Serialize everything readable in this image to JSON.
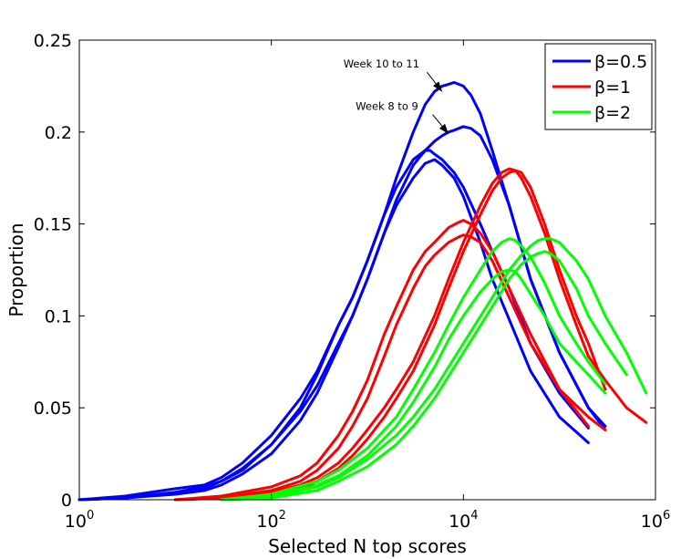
{
  "chart_data": {
    "type": "line",
    "title": "",
    "xlabel": "Selected N top scores",
    "ylabel": "Proportion",
    "xscale": "log10",
    "xlim": [
      1,
      1000000
    ],
    "ylim": [
      0,
      0.25
    ],
    "x_ticks": [
      {
        "base": "10",
        "exp": "0"
      },
      {
        "base": "10",
        "exp": "2"
      },
      {
        "base": "10",
        "exp": "4"
      },
      {
        "base": "10",
        "exp": "6"
      }
    ],
    "x_tick_values": [
      1,
      100,
      10000,
      1000000
    ],
    "y_ticks": [
      "0",
      "0.05",
      "0.1",
      "0.15",
      "0.2",
      "0.25"
    ],
    "y_tick_values": [
      0,
      0.05,
      0.1,
      0.15,
      0.2,
      0.25
    ],
    "legend": {
      "position": "top-right",
      "entries": [
        {
          "label": "β=0.5",
          "color": "#0000ff"
        },
        {
          "label": "β=1",
          "color": "#ff0000"
        },
        {
          "label": "β=2",
          "color": "#00ff00"
        }
      ]
    },
    "annotations": [
      {
        "text": "Week 10 to 11",
        "target_x": 6000,
        "target_y": 0.222,
        "text_x": 1400,
        "text_y": 0.235
      },
      {
        "text": "Week 8 to 9",
        "target_x": 7000,
        "target_y": 0.199,
        "text_x": 1600,
        "text_y": 0.212
      }
    ],
    "series": [
      {
        "name": "β=0.5 a",
        "group": "β=0.5",
        "color": "#0000ff",
        "x": [
          1,
          3,
          10,
          20,
          30,
          50,
          100,
          200,
          300,
          500,
          700,
          1000,
          1500,
          2000,
          3000,
          4000,
          5000,
          6000,
          7000,
          8000,
          10000,
          12000,
          15000,
          20000,
          30000,
          50000,
          100000,
          200000,
          300000
        ],
        "y": [
          0,
          0.002,
          0.006,
          0.008,
          0.012,
          0.02,
          0.035,
          0.055,
          0.07,
          0.095,
          0.11,
          0.13,
          0.155,
          0.175,
          0.2,
          0.215,
          0.222,
          0.225,
          0.226,
          0.227,
          0.225,
          0.22,
          0.21,
          0.19,
          0.16,
          0.12,
          0.08,
          0.05,
          0.038
        ]
      },
      {
        "name": "β=0.5 b",
        "group": "β=0.5",
        "color": "#0000ff",
        "x": [
          1,
          3,
          10,
          20,
          30,
          50,
          100,
          200,
          300,
          500,
          700,
          1000,
          1500,
          2000,
          3000,
          4000,
          5000,
          6000,
          7000,
          8000,
          10000,
          12000,
          15000,
          20000,
          30000,
          50000,
          100000,
          200000,
          300000
        ],
        "y": [
          0,
          0.001,
          0.004,
          0.006,
          0.01,
          0.017,
          0.03,
          0.048,
          0.062,
          0.085,
          0.1,
          0.12,
          0.145,
          0.163,
          0.182,
          0.19,
          0.195,
          0.198,
          0.2,
          0.201,
          0.203,
          0.202,
          0.198,
          0.185,
          0.16,
          0.12,
          0.08,
          0.05,
          0.04
        ]
      },
      {
        "name": "β=0.5 c",
        "group": "β=0.5",
        "color": "#0000ff",
        "x": [
          1,
          3,
          10,
          20,
          30,
          50,
          100,
          200,
          300,
          500,
          700,
          1000,
          1500,
          2000,
          3000,
          4000,
          4500,
          5000,
          6000,
          8000,
          10000,
          15000,
          20000,
          30000,
          50000,
          100000,
          200000
        ],
        "y": [
          0,
          0.001,
          0.004,
          0.007,
          0.01,
          0.016,
          0.03,
          0.05,
          0.068,
          0.095,
          0.11,
          0.13,
          0.155,
          0.17,
          0.185,
          0.19,
          0.19,
          0.188,
          0.185,
          0.178,
          0.17,
          0.15,
          0.135,
          0.115,
          0.085,
          0.058,
          0.039
        ]
      },
      {
        "name": "β=0.5 d",
        "group": "β=0.5",
        "color": "#0000ff",
        "x": [
          1,
          3,
          10,
          20,
          30,
          50,
          100,
          200,
          300,
          500,
          700,
          1000,
          1500,
          2000,
          3000,
          4000,
          5000,
          6000,
          8000,
          10000,
          15000,
          20000,
          30000,
          50000,
          100000,
          200000
        ],
        "y": [
          0,
          0.001,
          0.003,
          0.005,
          0.008,
          0.014,
          0.025,
          0.043,
          0.058,
          0.083,
          0.1,
          0.12,
          0.145,
          0.16,
          0.175,
          0.183,
          0.185,
          0.182,
          0.175,
          0.165,
          0.14,
          0.12,
          0.098,
          0.07,
          0.045,
          0.031
        ]
      },
      {
        "name": "β=1 a",
        "group": "β=1",
        "color": "#ff0000",
        "x": [
          10,
          30,
          100,
          200,
          300,
          500,
          700,
          1000,
          1500,
          2000,
          3000,
          5000,
          7000,
          10000,
          15000,
          20000,
          25000,
          30000,
          35000,
          40000,
          50000,
          70000,
          100000,
          150000,
          200000,
          300000,
          500000,
          800000
        ],
        "y": [
          0,
          0.001,
          0.004,
          0.008,
          0.012,
          0.02,
          0.028,
          0.038,
          0.05,
          0.06,
          0.075,
          0.1,
          0.12,
          0.14,
          0.16,
          0.172,
          0.178,
          0.18,
          0.179,
          0.175,
          0.165,
          0.145,
          0.12,
          0.095,
          0.078,
          0.065,
          0.05,
          0.042
        ]
      },
      {
        "name": "β=1 b",
        "group": "β=1",
        "color": "#ff0000",
        "x": [
          10,
          30,
          100,
          200,
          300,
          500,
          700,
          1000,
          1500,
          2000,
          3000,
          5000,
          7000,
          10000,
          15000,
          20000,
          25000,
          30000,
          35000,
          40000,
          50000,
          70000,
          100000,
          150000,
          200000,
          300000
        ],
        "y": [
          0,
          0.001,
          0.003,
          0.006,
          0.01,
          0.017,
          0.024,
          0.033,
          0.045,
          0.055,
          0.07,
          0.095,
          0.115,
          0.135,
          0.155,
          0.168,
          0.175,
          0.178,
          0.179,
          0.178,
          0.17,
          0.15,
          0.125,
          0.1,
          0.085,
          0.06
        ]
      },
      {
        "name": "β=1 c",
        "group": "β=1",
        "color": "#ff0000",
        "x": [
          10,
          30,
          100,
          200,
          300,
          500,
          700,
          1000,
          1500,
          2000,
          3000,
          4000,
          5000,
          7000,
          9000,
          10000,
          12000,
          15000,
          20000,
          30000,
          50000,
          100000,
          200000,
          300000
        ],
        "y": [
          0,
          0.002,
          0.007,
          0.013,
          0.02,
          0.035,
          0.048,
          0.065,
          0.09,
          0.105,
          0.125,
          0.135,
          0.14,
          0.148,
          0.151,
          0.152,
          0.15,
          0.145,
          0.135,
          0.115,
          0.09,
          0.06,
          0.045,
          0.038
        ]
      },
      {
        "name": "β=1 d",
        "group": "β=1",
        "color": "#ff0000",
        "x": [
          10,
          30,
          100,
          200,
          300,
          500,
          700,
          1000,
          1500,
          2000,
          3000,
          4000,
          5000,
          7000,
          9000,
          10000,
          12000,
          15000,
          20000,
          30000,
          50000,
          100000,
          200000
        ],
        "y": [
          0,
          0.001,
          0.005,
          0.01,
          0.016,
          0.028,
          0.04,
          0.055,
          0.078,
          0.095,
          0.115,
          0.127,
          0.133,
          0.14,
          0.143,
          0.144,
          0.143,
          0.14,
          0.13,
          0.11,
          0.085,
          0.06,
          0.04
        ]
      },
      {
        "name": "β=2 a",
        "group": "β=2",
        "color": "#00ff00",
        "x": [
          30,
          100,
          300,
          500,
          1000,
          2000,
          3000,
          5000,
          10000,
          20000,
          30000,
          40000,
          50000,
          60000,
          70000,
          80000,
          100000,
          150000,
          200000,
          300000,
          500000,
          800000
        ],
        "y": [
          0,
          0.002,
          0.007,
          0.012,
          0.022,
          0.035,
          0.045,
          0.06,
          0.085,
          0.11,
          0.125,
          0.133,
          0.138,
          0.141,
          0.142,
          0.142,
          0.14,
          0.13,
          0.12,
          0.1,
          0.08,
          0.058
        ]
      },
      {
        "name": "β=2 b",
        "group": "β=2",
        "color": "#00ff00",
        "x": [
          30,
          100,
          300,
          500,
          1000,
          2000,
          3000,
          5000,
          10000,
          20000,
          30000,
          40000,
          50000,
          60000,
          70000,
          80000,
          100000,
          150000,
          200000,
          300000,
          500000
        ],
        "y": [
          0,
          0.001,
          0.005,
          0.01,
          0.018,
          0.03,
          0.04,
          0.055,
          0.08,
          0.105,
          0.12,
          0.128,
          0.132,
          0.134,
          0.135,
          0.134,
          0.13,
          0.115,
          0.1,
          0.085,
          0.068
        ]
      },
      {
        "name": "β=2 c",
        "group": "β=2",
        "color": "#00ff00",
        "x": [
          30,
          100,
          300,
          500,
          1000,
          2000,
          3000,
          5000,
          7000,
          10000,
          15000,
          20000,
          25000,
          30000,
          35000,
          40000,
          50000,
          70000,
          100000,
          150000,
          200000,
          300000
        ],
        "y": [
          0,
          0.003,
          0.01,
          0.016,
          0.028,
          0.045,
          0.06,
          0.08,
          0.095,
          0.11,
          0.125,
          0.135,
          0.14,
          0.142,
          0.141,
          0.138,
          0.132,
          0.118,
          0.1,
          0.085,
          0.075,
          0.063
        ]
      },
      {
        "name": "β=2 d",
        "group": "β=2",
        "color": "#00ff00",
        "x": [
          30,
          100,
          300,
          500,
          1000,
          2000,
          3000,
          5000,
          7000,
          10000,
          15000,
          20000,
          25000,
          30000,
          35000,
          40000,
          50000,
          70000,
          100000,
          150000,
          200000,
          300000
        ],
        "y": [
          0,
          0.002,
          0.008,
          0.013,
          0.024,
          0.04,
          0.053,
          0.072,
          0.087,
          0.1,
          0.113,
          0.12,
          0.124,
          0.125,
          0.124,
          0.12,
          0.112,
          0.1,
          0.085,
          0.075,
          0.068,
          0.058
        ]
      }
    ]
  }
}
